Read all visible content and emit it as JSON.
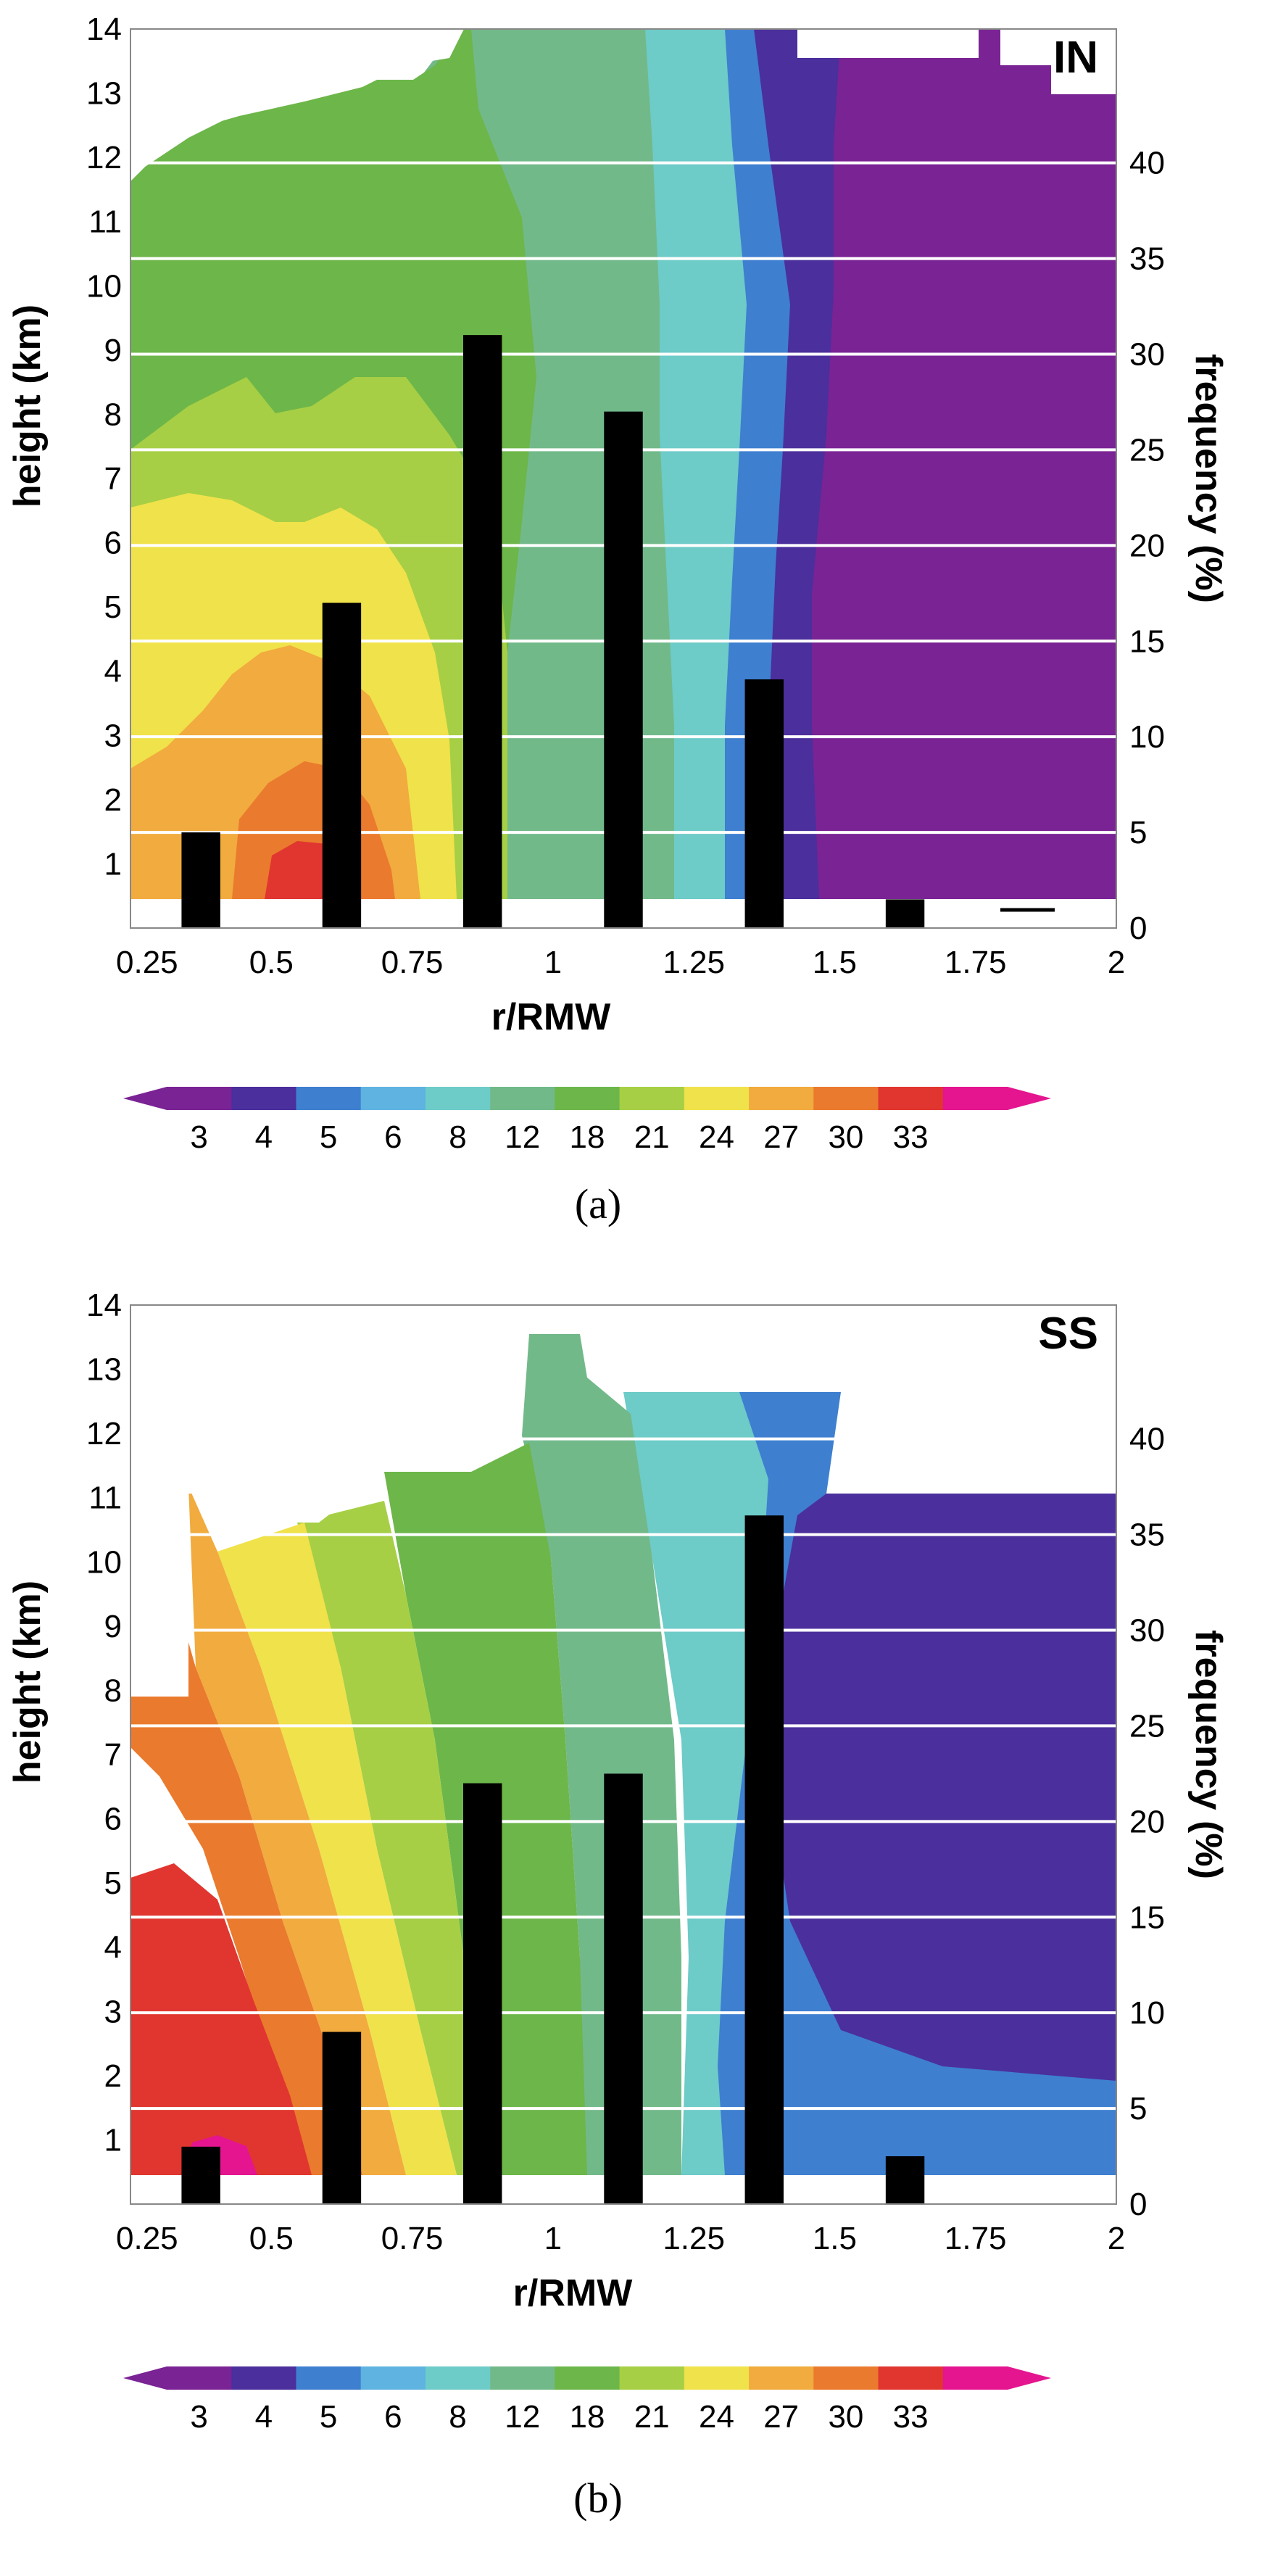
{
  "chart_data": [
    {
      "type": "bar",
      "panel_label": "IN",
      "caption": "(a)",
      "xlabel": "r/RMW",
      "ylabel": "height (km)",
      "y2label": "frequency (%)",
      "xlim": [
        0.25,
        2
      ],
      "ylim": [
        0,
        14
      ],
      "y2lim": [
        0,
        47
      ],
      "x_ticks": [
        "0.25",
        "0.5",
        "0.75",
        "1",
        "1.25",
        "1.5",
        "1.75",
        "2"
      ],
      "y_ticks": [
        "1",
        "2",
        "3",
        "4",
        "5",
        "6",
        "7",
        "8",
        "9",
        "10",
        "11",
        "12",
        "13",
        "14"
      ],
      "y2_ticks": [
        "0",
        "5",
        "10",
        "15",
        "20",
        "25",
        "30",
        "35",
        "40"
      ],
      "bar_centers": [
        0.375,
        0.625,
        0.875,
        1.125,
        1.375,
        1.625
      ],
      "values": [
        5,
        17,
        31,
        27,
        13,
        1.5
      ],
      "background": "filled contour of reflectivity vs r/RMW and height, values decreasing outward"
    },
    {
      "type": "bar",
      "panel_label": "SS",
      "caption": "(b)",
      "xlabel": "r/RMW",
      "ylabel": "height (km)",
      "y2label": "frequency (%)",
      "xlim": [
        0.25,
        2
      ],
      "ylim": [
        0,
        14
      ],
      "y2lim": [
        0,
        47
      ],
      "x_ticks": [
        "0.25",
        "0.5",
        "0.75",
        "1",
        "1.25",
        "1.5",
        "1.75",
        "2"
      ],
      "y_ticks": [
        "1",
        "2",
        "3",
        "4",
        "5",
        "6",
        "7",
        "8",
        "9",
        "10",
        "11",
        "12",
        "13",
        "14"
      ],
      "y2_ticks": [
        "0",
        "5",
        "10",
        "15",
        "20",
        "25",
        "30",
        "35",
        "40"
      ],
      "bar_centers": [
        0.375,
        0.625,
        0.875,
        1.125,
        1.375,
        1.625
      ],
      "values": [
        3,
        9,
        22,
        22.5,
        36,
        2.5
      ],
      "background": "filled contour of reflectivity vs r/RMW and height, values decreasing outward"
    }
  ],
  "colorbar": {
    "labels": [
      "3",
      "4",
      "5",
      "6",
      "8",
      "12",
      "18",
      "21",
      "24",
      "27",
      "30",
      "33"
    ],
    "colors": [
      "#7a2394",
      "#4b2f9c",
      "#3e7fd0",
      "#5fb3e0",
      "#6dcbc8",
      "#72b98a",
      "#6db64a",
      "#a6cf45",
      "#f0e24a",
      "#f1ab3e",
      "#ea7a2d",
      "#e0362f",
      "#e4158f"
    ]
  },
  "colors": {
    "bar": "#000000",
    "gridline": "#ffffff"
  }
}
